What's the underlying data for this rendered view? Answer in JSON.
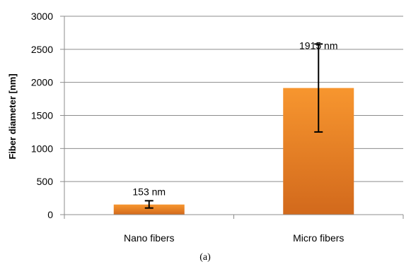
{
  "chart_data": {
    "type": "bar",
    "categories": [
      "Nano fibers",
      "Micro fibers"
    ],
    "values": [
      153,
      1915
    ],
    "error_bars": [
      {
        "low": 100,
        "high": 210
      },
      {
        "low": 1250,
        "high": 2580
      }
    ],
    "data_labels": [
      "153 nm",
      "1915 nm"
    ],
    "title": "",
    "xlabel": "",
    "ylabel": "Fiber diameter [nm]",
    "ylim": [
      0,
      3000
    ],
    "yticks": [
      0,
      500,
      1000,
      1500,
      2000,
      2500,
      3000
    ],
    "grid": true,
    "legend": "none",
    "bar_color_top": "#f7962f",
    "bar_color_bottom": "#d2691c"
  },
  "caption": "(a)"
}
